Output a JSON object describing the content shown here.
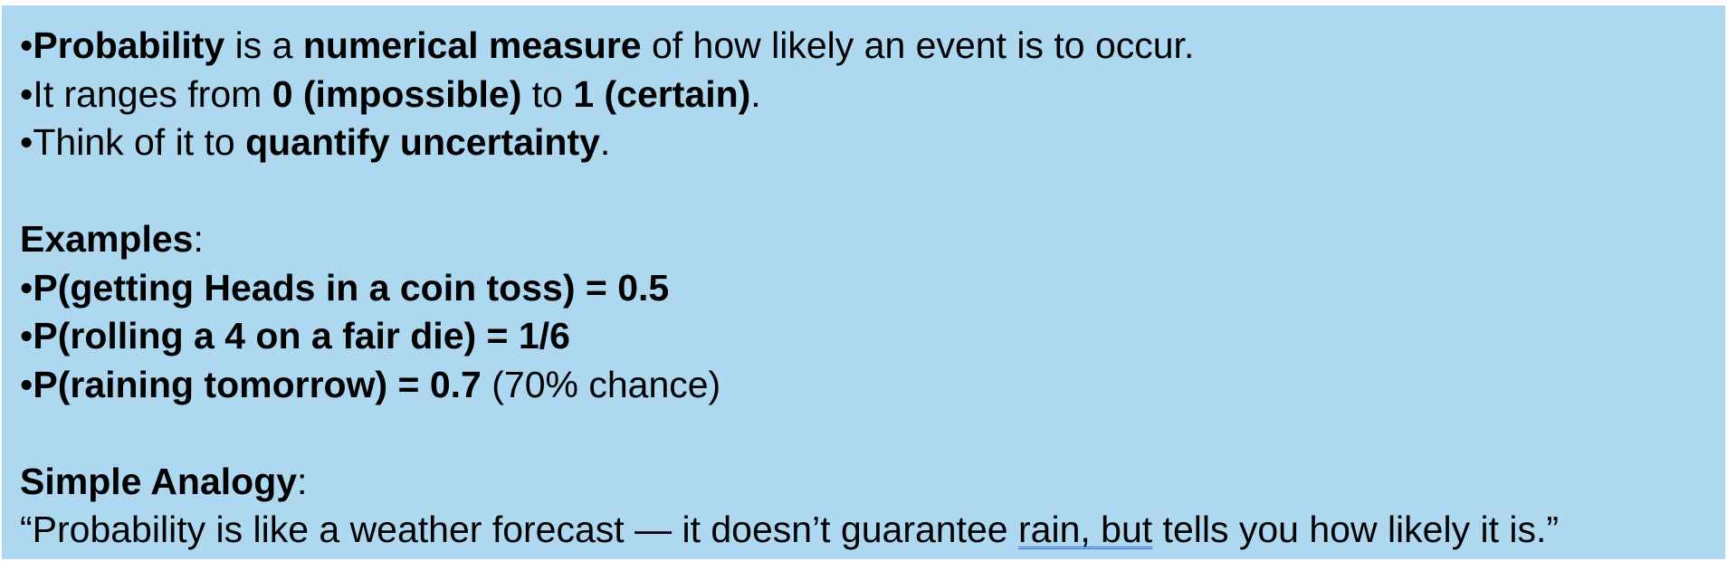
{
  "intro": {
    "line1": {
      "bullet": "•",
      "term": "Probability",
      "t1": " is a ",
      "term2": "numerical measure",
      "t2": " of how likely an event is to occur."
    },
    "line2": {
      "bullet": "•",
      "t1": "It ranges from ",
      "low": "0 (impossible)",
      "t2": " to ",
      "high": "1 (certain)",
      "t3": "."
    },
    "line3": {
      "bullet": "•",
      "t1": "Think of it to ",
      "phrase": "quantify uncertainty",
      "t2": "."
    }
  },
  "examples": {
    "heading": "Examples",
    "colon": ":",
    "items": [
      {
        "bullet": "•",
        "bold": "P(getting Heads in a coin toss) = 0.5",
        "note": ""
      },
      {
        "bullet": "•",
        "bold": "P(rolling a 4 on a fair die) = 1/6",
        "note": ""
      },
      {
        "bullet": "•",
        "bold": "P(raining tomorrow) = 0.7",
        "note": " (70% chance)"
      }
    ]
  },
  "analogy": {
    "heading": "Simple Analogy",
    "colon": ":",
    "quote_start": "“Probability is like a weather forecast — it doesn’t guarantee ",
    "marked": "rain, but",
    "quote_end": " tells you how likely it is.”",
    "mark_color": "#3c6fd6"
  },
  "colors": {
    "background": "#add8ef",
    "text": "#000000"
  }
}
